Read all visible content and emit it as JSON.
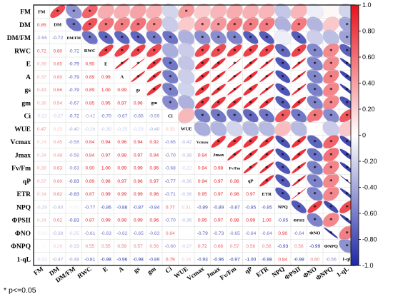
{
  "chart_data": {
    "type": "heatmap",
    "variables": [
      "FM",
      "DM",
      "DM/FM",
      "RWC",
      "E",
      "A",
      "gs",
      "gm",
      "Ci",
      "WUE",
      "Vcmax",
      "Jmax",
      "Fv/Fm",
      "qP",
      "ETR",
      "NPQ",
      "ΦPSII",
      "ΦNO",
      "ΦNPQ",
      "1-qL"
    ],
    "lower_triangle": [
      [],
      [
        0.85
      ],
      [
        -0.55,
        -0.72
      ],
      [
        0.72,
        0.8,
        -0.72
      ],
      [
        0.39,
        0.65,
        -0.79,
        0.9
      ],
      [
        0.37,
        0.6,
        -0.79,
        0.89,
        0.99
      ],
      [
        0.43,
        0.66,
        -0.79,
        0.89,
        1.0,
        0.99
      ],
      [
        0.36,
        0.54,
        -0.67,
        0.85,
        0.95,
        0.97,
        0.96
      ],
      [
        -0.22,
        -0.27,
        -0.72,
        -0.42,
        -0.7,
        -0.67,
        -0.65,
        -0.59
      ],
      [
        0.47,
        0.25,
        -0.4,
        -0.26,
        -0.3,
        -0.25,
        -0.23,
        -0.4,
        0.33
      ],
      [
        0.24,
        0.45,
        -0.58,
        0.84,
        0.94,
        0.96,
        0.94,
        0.92,
        -0.65,
        -0.42
      ],
      [
        0.34,
        0.48,
        -0.58,
        0.84,
        0.97,
        0.98,
        0.97,
        0.94,
        -0.7,
        -0.38,
        0.94
      ],
      [
        0.39,
        0.63,
        -0.63,
        0.9,
        1.0,
        0.99,
        0.99,
        0.96,
        -0.68,
        -0.22,
        0.94,
        0.98
      ],
      [
        0.37,
        0.6,
        -0.83,
        0.89,
        0.98,
        0.97,
        0.96,
        0.97,
        -0.77,
        -0.36,
        0.94,
        0.97,
        0.98
      ],
      [
        0.34,
        0.62,
        -0.83,
        0.87,
        0.99,
        0.99,
        0.99,
        0.96,
        -0.71,
        -0.36,
        0.95,
        0.97,
        0.98,
        0.97
      ],
      [
        -0.29,
        -0.4,
        -0.09,
        -0.77,
        -0.86,
        -0.88,
        -0.87,
        -0.84,
        0.77,
        0.31,
        -0.89,
        -0.89,
        -0.87,
        -0.85,
        -0.85
      ],
      [
        0.34,
        0.62,
        -0.83,
        0.87,
        0.99,
        0.99,
        0.99,
        0.96,
        -0.7,
        -0.36,
        0.95,
        0.97,
        0.98,
        0.99,
        1.0,
        -0.85
      ],
      [
        -0.09,
        -0.38,
        -0.25,
        -0.61,
        -0.63,
        -0.62,
        -0.65,
        -0.63,
        0.64,
        0.01,
        -0.79,
        -0.73,
        -0.65,
        -0.64,
        -0.64,
        0.9,
        -0.64
      ],
      [
        0.04,
        0.26,
        -0.33,
        0.55,
        0.55,
        0.59,
        0.57,
        0.56,
        -0.6,
        -0.27,
        0.72,
        0.66,
        0.57,
        0.56,
        0.56,
        -0.93,
        0.56,
        -0.99
      ],
      [
        -0.22,
        -0.47,
        -0.48,
        -0.81,
        -0.98,
        -0.96,
        -0.98,
        -0.89,
        0.79,
        0.26,
        -0.93,
        -0.96,
        -0.97,
        -1.0,
        -0.98,
        0.84,
        -0.98,
        0.6,
        -0.56
      ]
    ],
    "diagonal_labels": [
      "FM",
      "DM",
      "DM/FM",
      "RWC",
      "E",
      "A",
      "gs",
      "gm",
      "Ci",
      "WUE",
      "Vcmax",
      "Jmax",
      "Fv/Fm",
      "qP",
      "ETR",
      "NPQ",
      "ΦPSII",
      "ΦNO",
      "ΦNPQ",
      "1-qL"
    ],
    "colorbar": {
      "min": -1.0,
      "max": 1.0,
      "ticks": [
        "1.0",
        "0.80",
        "0.60",
        "0.40",
        "0.20",
        "0",
        "-0.20",
        "-0.40",
        "-0.60",
        "-0.80",
        "-1.0"
      ],
      "colors": {
        "positive": "#e8121c",
        "neutral": "#ffffff",
        "negative": "#1f28a3"
      }
    },
    "significance_marker": "*",
    "upper_triangle": "ellipses (shape and color encode r), * marks significance",
    "lower_triangle_display": "numeric r values colored by sign and magnitude"
  },
  "footnote": "* p<=0.05"
}
